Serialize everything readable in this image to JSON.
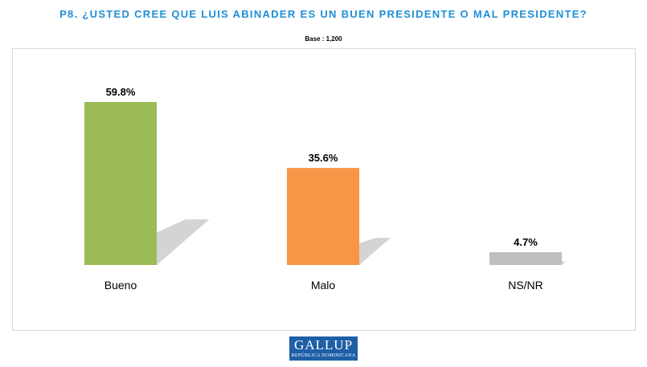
{
  "chart_data": {
    "type": "bar",
    "title": "P8. ¿USTED CREE QUE LUIS ABINADER ES UN BUEN PRESIDENTE O MAL PRESIDENTE?",
    "subtitle": "Base : 1,200",
    "categories": [
      "Bueno",
      "Malo",
      "NS/NR"
    ],
    "values": [
      59.8,
      35.6,
      4.7
    ],
    "value_labels": [
      "59.8%",
      "35.6%",
      "4.7%"
    ],
    "colors": [
      "#9bbb59",
      "#f79646",
      "#bfbfbf"
    ],
    "shadow_color": "#cccccc",
    "xlabel": "",
    "ylabel": "",
    "ylim": [
      0,
      60
    ],
    "grid": false
  },
  "logo": {
    "main_text": "GALLUP",
    "sub_text": "REPÚBLICA DOMINICANA",
    "bg_color": "#1e5fa6"
  }
}
